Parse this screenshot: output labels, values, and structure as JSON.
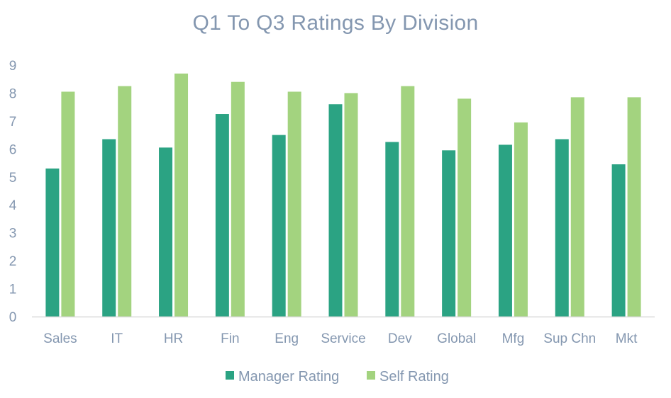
{
  "chart_data": {
    "type": "bar",
    "title": "Q1 To Q3 Ratings By Division",
    "xlabel": "",
    "ylabel": "",
    "categories": [
      "Sales",
      "IT",
      "HR",
      "Fin",
      "Eng",
      "Service",
      "Dev",
      "Global",
      "Mfg",
      "Sup Chn",
      "Mkt"
    ],
    "series": [
      {
        "name": "Manager Rating",
        "color": "#2BA383",
        "values": [
          5.3,
          6.35,
          6.05,
          7.25,
          6.5,
          7.6,
          6.25,
          5.95,
          6.15,
          6.35,
          5.45
        ]
      },
      {
        "name": "Self Rating",
        "color": "#A3D37F",
        "values": [
          8.05,
          8.25,
          8.7,
          8.4,
          8.05,
          8.0,
          8.25,
          7.8,
          6.95,
          7.85,
          7.85
        ]
      }
    ],
    "ylim": [
      0,
      9
    ],
    "yticks": [
      0,
      1,
      2,
      3,
      4,
      5,
      6,
      7,
      8,
      9
    ],
    "grid": false,
    "legend_position": "bottom",
    "axis_color": "#D9D9D9",
    "text_color": "#8497B0"
  }
}
